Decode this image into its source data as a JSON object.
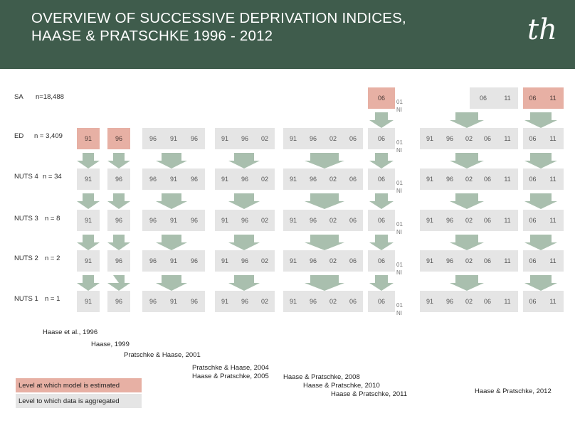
{
  "header": {
    "title_line1": "OVERVIEW OF SUCCESSIVE DEPRIVATION INDICES,",
    "title_line2": "HAASE & PRATSCHKE 1996 - 2012",
    "logo": "th"
  },
  "rows": {
    "sa": {
      "name": "SA",
      "count": "n=18,488"
    },
    "ed": {
      "name": "ED",
      "count": "n = 3,409"
    },
    "nuts4": {
      "name": "NUTS 4",
      "count": "n = 34"
    },
    "nuts3": {
      "name": "NUTS 3",
      "count": "n = 8"
    },
    "nuts2": {
      "name": "NUTS 2",
      "count": "n = 2"
    },
    "nuts1": {
      "name": "NUTS 1",
      "count": "n = 1"
    }
  },
  "years": {
    "y91": "91",
    "y96": "96",
    "y02": "02",
    "y06": "06",
    "y11": "11",
    "ni_01": "01",
    "ni_label": "NI"
  },
  "colors": {
    "header": "#3f5c4c",
    "estimated": "#e7b0a4",
    "aggregated": "#e5e5e5",
    "arrow": "#a9bfae"
  },
  "citations": {
    "c1": "Haase et al., 1996",
    "c2": "Haase, 1999",
    "c3": "Pratschke & Haase, 2001",
    "c4a": "Pratschke & Haase, 2004",
    "c4b": "Haase & Pratschke, 2005",
    "c5a": "Haase & Pratschke, 2008",
    "c5b": "Haase & Pratschke, 2010",
    "c5c": "Haase & Pratschke, 2011",
    "c6": "Haase & Pratschke, 2012"
  },
  "legend": {
    "estimated": "Level at which model is estimated",
    "aggregated": "Level to which data is aggregated"
  }
}
